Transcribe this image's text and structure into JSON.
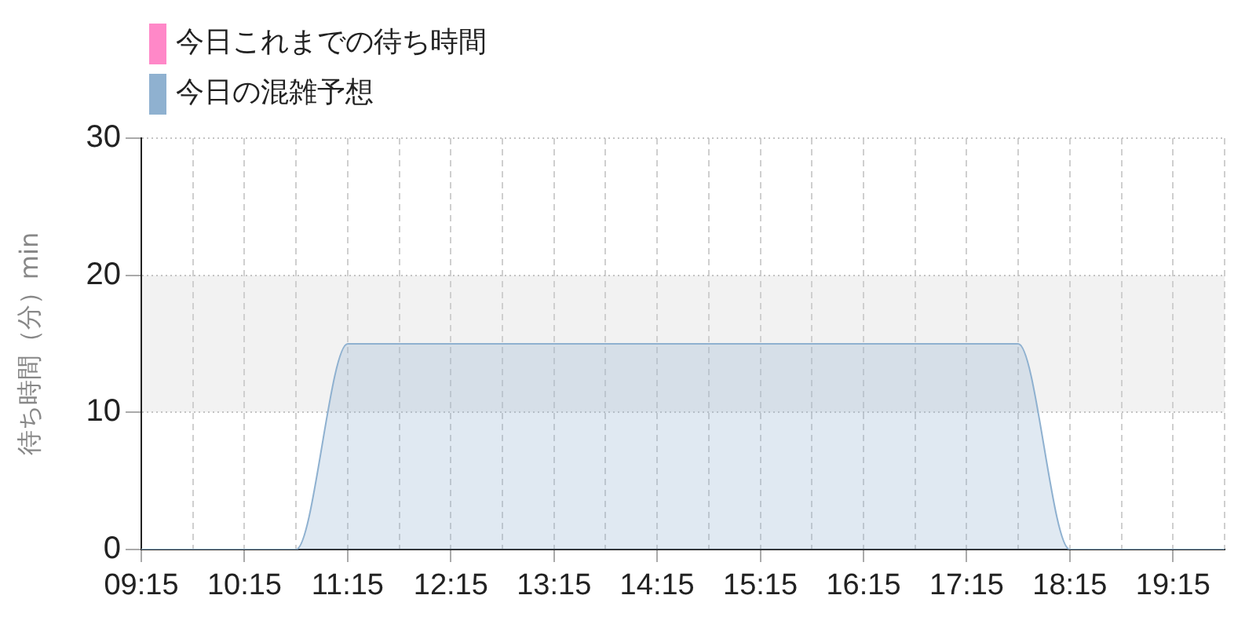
{
  "chart_data": {
    "type": "area",
    "ylabel": "待ち時間（分）min",
    "x": [
      9.25,
      9.75,
      10.25,
      10.75,
      11.25,
      11.75,
      12.25,
      12.75,
      13.25,
      13.75,
      14.25,
      14.75,
      15.25,
      15.75,
      16.25,
      16.75,
      17.25,
      17.75,
      18.25,
      18.75,
      19.25,
      19.75
    ],
    "series": [
      {
        "name": "今日これまでの待ち時間",
        "color": "#ff88c8",
        "values": [
          null,
          null,
          null,
          null,
          null,
          null,
          null,
          null,
          null,
          null,
          null,
          null,
          null,
          null,
          null,
          null,
          null,
          null,
          null,
          null,
          null,
          null
        ]
      },
      {
        "name": "今日の混雑予想",
        "color": "#8fb1d0",
        "values": [
          0,
          0,
          0,
          0,
          15,
          15,
          15,
          15,
          15,
          15,
          15,
          15,
          15,
          15,
          15,
          15,
          15,
          15,
          0,
          0,
          0,
          0
        ]
      }
    ],
    "xlim": [
      9.25,
      19.75
    ],
    "xticks": [
      {
        "value": 9.25,
        "label": "09:15"
      },
      {
        "value": 9.75,
        "label": null
      },
      {
        "value": 10.25,
        "label": "10:15"
      },
      {
        "value": 10.75,
        "label": null
      },
      {
        "value": 11.25,
        "label": "11:15"
      },
      {
        "value": 11.75,
        "label": null
      },
      {
        "value": 12.25,
        "label": "12:15"
      },
      {
        "value": 12.75,
        "label": null
      },
      {
        "value": 13.25,
        "label": "13:15"
      },
      {
        "value": 13.75,
        "label": null
      },
      {
        "value": 14.25,
        "label": "14:15"
      },
      {
        "value": 14.75,
        "label": null
      },
      {
        "value": 15.25,
        "label": "15:15"
      },
      {
        "value": 15.75,
        "label": null
      },
      {
        "value": 16.25,
        "label": "16:15"
      },
      {
        "value": 16.75,
        "label": null
      },
      {
        "value": 17.25,
        "label": "17:15"
      },
      {
        "value": 17.75,
        "label": null
      },
      {
        "value": 18.25,
        "label": "18:15"
      },
      {
        "value": 18.75,
        "label": null
      },
      {
        "value": 19.25,
        "label": "19:15"
      },
      {
        "value": 19.75,
        "label": null
      }
    ],
    "ylim": [
      0,
      30
    ],
    "yticks": [
      0,
      10,
      20,
      30
    ],
    "bands": [
      {
        "axis": "y",
        "from": 10,
        "to": 20,
        "color": "#f2f2f2"
      }
    ],
    "grid": true,
    "legend": "top left"
  }
}
